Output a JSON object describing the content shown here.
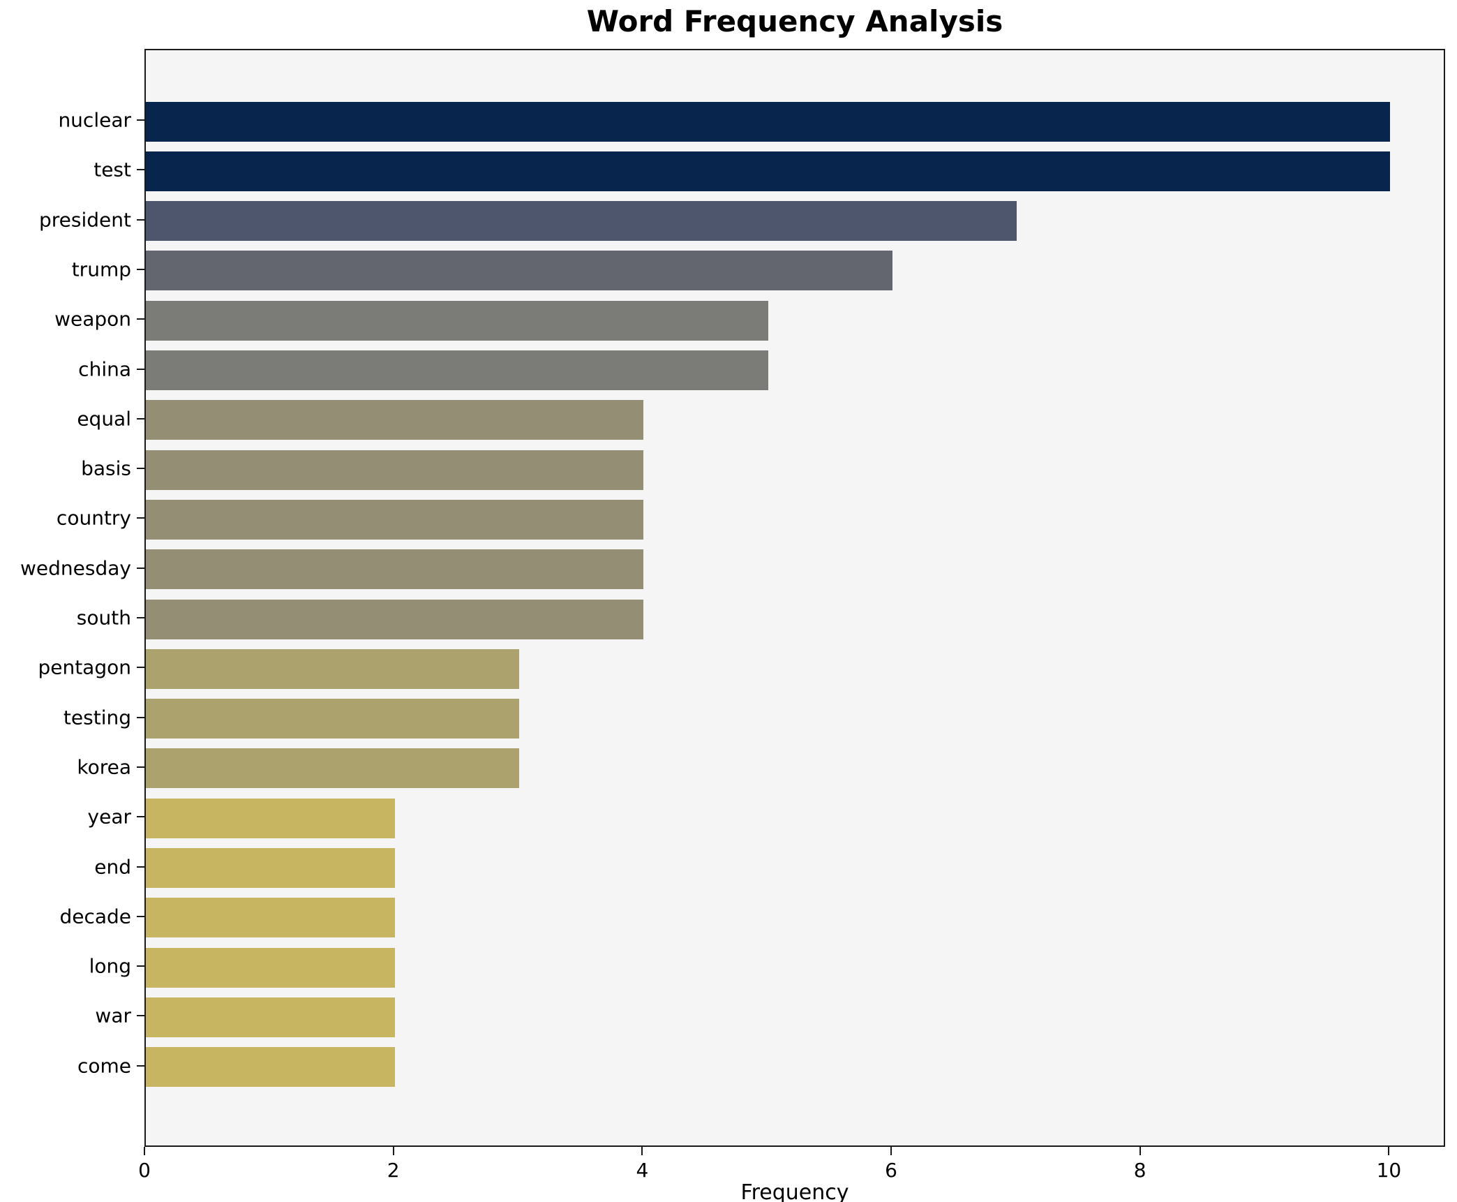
{
  "title": "Word Frequency Analysis",
  "xlabel": "Frequency",
  "chart_data": {
    "type": "bar",
    "orientation": "horizontal",
    "title": "Word Frequency Analysis",
    "xlabel": "Frequency",
    "ylabel": "",
    "categories": [
      "nuclear",
      "test",
      "president",
      "trump",
      "weapon",
      "china",
      "equal",
      "basis",
      "country",
      "wednesday",
      "south",
      "pentagon",
      "testing",
      "korea",
      "year",
      "end",
      "decade",
      "long",
      "war",
      "come"
    ],
    "values": [
      10,
      10,
      7,
      6,
      5,
      5,
      4,
      4,
      4,
      4,
      4,
      3,
      3,
      3,
      2,
      2,
      2,
      2,
      2,
      2
    ],
    "x_ticks": [
      0,
      2,
      4,
      6,
      8,
      10
    ],
    "xlim": [
      0,
      10.45
    ],
    "grid": false,
    "legend": null,
    "plot_background": "#f5f5f5",
    "border_color": "#1a1a1a",
    "colors_by_value": {
      "10": "#07254d",
      "7": "#4d566c",
      "6": "#63666f",
      "5": "#7b7b77",
      "4": "#938e74",
      "3": "#aba26e",
      "2": "#c8b562"
    }
  }
}
